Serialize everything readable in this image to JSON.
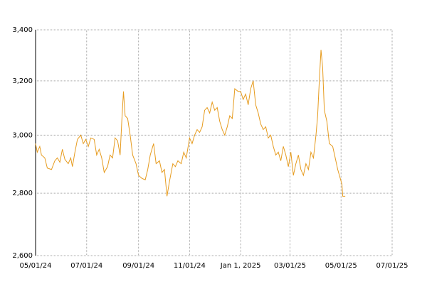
{
  "chart_data": {
    "type": "line",
    "x": [
      "2024-05-01",
      "2024-05-03",
      "2024-05-06",
      "2024-05-08",
      "2024-05-12",
      "2024-05-15",
      "2024-05-20",
      "2024-05-24",
      "2024-05-27",
      "2024-05-30",
      "2024-06-02",
      "2024-06-05",
      "2024-06-09",
      "2024-06-12",
      "2024-06-14",
      "2024-06-17",
      "2024-06-20",
      "2024-06-24",
      "2024-06-27",
      "2024-06-30",
      "2024-07-03",
      "2024-07-06",
      "2024-07-10",
      "2024-07-13",
      "2024-07-16",
      "2024-07-19",
      "2024-07-22",
      "2024-07-26",
      "2024-07-29",
      "2024-08-01",
      "2024-08-04",
      "2024-08-07",
      "2024-08-10",
      "2024-08-12",
      "2024-08-14",
      "2024-08-16",
      "2024-08-19",
      "2024-08-22",
      "2024-08-25",
      "2024-08-29",
      "2024-09-01",
      "2024-09-05",
      "2024-09-09",
      "2024-09-12",
      "2024-09-15",
      "2024-09-19",
      "2024-09-22",
      "2024-09-26",
      "2024-09-29",
      "2024-10-02",
      "2024-10-05",
      "2024-10-08",
      "2024-10-12",
      "2024-10-15",
      "2024-10-18",
      "2024-10-22",
      "2024-10-25",
      "2024-10-28",
      "2024-11-01",
      "2024-11-04",
      "2024-11-07",
      "2024-11-10",
      "2024-11-13",
      "2024-11-16",
      "2024-11-19",
      "2024-11-22",
      "2024-11-25",
      "2024-11-28",
      "2024-12-01",
      "2024-12-04",
      "2024-12-07",
      "2024-12-10",
      "2024-12-13",
      "2024-12-16",
      "2024-12-19",
      "2024-12-22",
      "2024-12-25",
      "2024-12-29",
      "2025-01-01",
      "2025-01-04",
      "2025-01-07",
      "2025-01-10",
      "2025-01-13",
      "2025-01-16",
      "2025-01-19",
      "2025-01-22",
      "2025-01-25",
      "2025-01-28",
      "2025-01-31",
      "2025-02-03",
      "2025-02-06",
      "2025-02-09",
      "2025-02-12",
      "2025-02-15",
      "2025-02-18",
      "2025-02-21",
      "2025-02-24",
      "2025-02-27",
      "2025-03-02",
      "2025-03-05",
      "2025-03-08",
      "2025-03-11",
      "2025-03-14",
      "2025-03-17",
      "2025-03-20",
      "2025-03-23",
      "2025-03-26",
      "2025-03-29",
      "2025-04-01",
      "2025-04-03",
      "2025-04-05",
      "2025-04-07",
      "2025-04-09",
      "2025-04-11",
      "2025-04-14",
      "2025-04-17",
      "2025-04-21",
      "2025-04-24",
      "2025-04-27",
      "2025-04-30",
      "2025-05-02",
      "2025-05-03",
      "2025-05-06"
    ],
    "series": [
      {
        "color": "#e69b1e",
        "values": [
          2970,
          2940,
          2960,
          2930,
          2920,
          2885,
          2880,
          2910,
          2920,
          2905,
          2950,
          2915,
          2900,
          2920,
          2890,
          2940,
          2985,
          3000,
          2970,
          2985,
          2960,
          2990,
          2985,
          2930,
          2950,
          2920,
          2870,
          2890,
          2930,
          2920,
          2990,
          2980,
          2930,
          3050,
          3160,
          3070,
          3060,
          3000,
          2930,
          2900,
          2860,
          2850,
          2845,
          2880,
          2930,
          2970,
          2900,
          2910,
          2870,
          2880,
          2790,
          2840,
          2900,
          2890,
          2910,
          2900,
          2940,
          2920,
          2990,
          2970,
          3000,
          3020,
          3010,
          3030,
          3090,
          3100,
          3080,
          3120,
          3090,
          3100,
          3050,
          3020,
          3000,
          3030,
          3070,
          3060,
          3170,
          3160,
          3160,
          3130,
          3150,
          3110,
          3170,
          3200,
          3110,
          3080,
          3040,
          3020,
          3030,
          2990,
          3000,
          2960,
          2930,
          2940,
          2910,
          2960,
          2930,
          2890,
          2940,
          2860,
          2900,
          2930,
          2880,
          2860,
          2900,
          2880,
          2940,
          2920,
          3000,
          3070,
          3200,
          3320,
          3250,
          3090,
          3050,
          2970,
          2960,
          2920,
          2880,
          2850,
          2830,
          2790,
          2790
        ]
      }
    ],
    "xlim": [
      "2024-05-01",
      "2025-07-01"
    ],
    "xticks": [
      {
        "value": "2024-05-01",
        "label": "05/01/24"
      },
      {
        "value": "2024-07-01",
        "label": "07/01/24"
      },
      {
        "value": "2024-09-01",
        "label": "09/01/24"
      },
      {
        "value": "2024-11-01",
        "label": "11/01/24"
      },
      {
        "value": "2025-01-01",
        "label": "Jan 1, 2025"
      },
      {
        "value": "2025-03-01",
        "label": "03/01/25"
      },
      {
        "value": "2025-05-01",
        "label": "05/01/25"
      },
      {
        "value": "2025-07-01",
        "label": "07/01/25"
      }
    ],
    "ylim": [
      2600,
      3400
    ],
    "yticks": [
      {
        "value": 2600,
        "label": "2,600"
      },
      {
        "value": 2800,
        "label": "2,800"
      },
      {
        "value": 3000,
        "label": "3,000"
      },
      {
        "value": 3200,
        "label": "3,200"
      },
      {
        "value": 3400,
        "label": "3,400"
      }
    ],
    "log_scale": true,
    "grid": true
  }
}
